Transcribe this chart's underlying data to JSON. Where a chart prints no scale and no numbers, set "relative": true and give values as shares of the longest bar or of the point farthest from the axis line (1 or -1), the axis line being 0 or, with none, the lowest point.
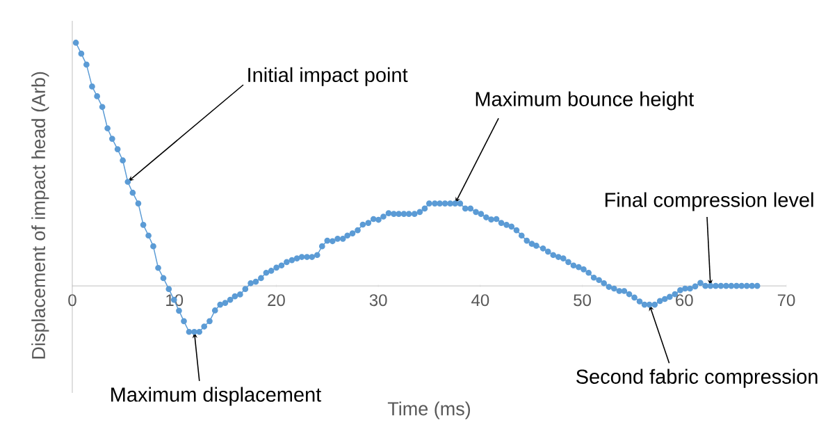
{
  "chart_data": {
    "type": "line",
    "relative": true,
    "xlabel": "Time (ms)",
    "ylabel": "Displacement of impact head (Arb)",
    "xlim": [
      0,
      70
    ],
    "xticks": [
      0,
      10,
      20,
      30,
      40,
      50,
      60,
      70
    ],
    "marker": "circle",
    "line_style": "solid",
    "color": "#5b9bd5",
    "x": [
      0.35,
      0.88,
      1.39,
      1.94,
      2.43,
      2.94,
      3.45,
      3.91,
      4.44,
      4.95,
      5.44,
      5.92,
      6.47,
      6.96,
      7.47,
      7.94,
      8.42,
      8.93,
      9.46,
      9.97,
      10.46,
      10.94,
      11.45,
      11.96,
      12.45,
      12.93,
      13.46,
      13.99,
      14.5,
      14.99,
      15.48,
      15.94,
      16.45,
      16.96,
      17.49,
      17.99,
      18.5,
      19.01,
      19.5,
      20.01,
      20.51,
      21.02,
      21.53,
      22.02,
      22.5,
      23.01,
      23.5,
      24.01,
      24.49,
      25.0,
      25.51,
      26.01,
      26.53,
      26.97,
      27.47,
      27.98,
      28.48,
      29.02,
      29.53,
      30.02,
      30.5,
      31.01,
      31.52,
      32.01,
      32.51,
      33.0,
      33.55,
      34.07,
      34.55,
      34.99,
      35.54,
      36.03,
      36.54,
      37.05,
      37.53,
      38.02,
      38.53,
      39.04,
      39.57,
      40.07,
      40.58,
      41.07,
      41.58,
      42.06,
      42.57,
      43.06,
      43.55,
      44.05,
      44.56,
      45.05,
      45.49,
      46.15,
      46.64,
      47.15,
      47.66,
      48.14,
      48.63,
      49.14,
      49.65,
      50.13,
      50.62,
      51.13,
      51.64,
      52.12,
      52.61,
      53.12,
      53.63,
      54.11,
      54.6,
      55.11,
      55.62,
      56.1,
      56.58,
      57.1,
      57.61,
      58.09,
      58.57,
      59.08,
      59.6,
      60.08,
      60.56,
      61.07,
      61.58,
      62.07,
      62.57,
      63.08,
      63.59,
      64.1,
      64.61,
      65.12,
      65.62,
      66.13,
      66.64,
      67.15
    ],
    "values": [
      1.0,
      0.955,
      0.91,
      0.82,
      0.78,
      0.736,
      0.648,
      0.605,
      0.562,
      0.516,
      0.428,
      0.383,
      0.339,
      0.251,
      0.207,
      0.163,
      0.074,
      0.032,
      -0.013,
      -0.057,
      -0.102,
      -0.145,
      -0.189,
      -0.189,
      -0.189,
      -0.167,
      -0.145,
      -0.101,
      -0.077,
      -0.07,
      -0.057,
      -0.043,
      -0.035,
      -0.013,
      0.011,
      0.017,
      0.032,
      0.054,
      0.062,
      0.075,
      0.084,
      0.098,
      0.106,
      0.113,
      0.119,
      0.119,
      0.119,
      0.127,
      0.163,
      0.186,
      0.184,
      0.194,
      0.194,
      0.207,
      0.216,
      0.229,
      0.252,
      0.259,
      0.275,
      0.272,
      0.285,
      0.299,
      0.296,
      0.296,
      0.296,
      0.296,
      0.296,
      0.304,
      0.318,
      0.339,
      0.339,
      0.339,
      0.339,
      0.339,
      0.339,
      0.339,
      0.318,
      0.318,
      0.304,
      0.296,
      0.282,
      0.273,
      0.275,
      0.259,
      0.251,
      0.244,
      0.229,
      0.207,
      0.186,
      0.173,
      0.165,
      0.154,
      0.141,
      0.127,
      0.119,
      0.113,
      0.098,
      0.084,
      0.077,
      0.068,
      0.054,
      0.034,
      0.024,
      0.011,
      -0.004,
      -0.011,
      -0.021,
      -0.021,
      -0.034,
      -0.048,
      -0.064,
      -0.077,
      -0.077,
      -0.077,
      -0.062,
      -0.054,
      -0.045,
      -0.034,
      -0.018,
      -0.011,
      -0.011,
      -0.002,
      0.012,
      0.0,
      0.0,
      0.0,
      0.0,
      0.0,
      0.0,
      0.0,
      0.0,
      0.0,
      0.0,
      0.0
    ],
    "annotations": [
      {
        "text": "Initial impact point",
        "x": 5.44,
        "y": 0.428
      },
      {
        "text": "Maximum displacement",
        "x": 11.96,
        "y": -0.189
      },
      {
        "text": "Maximum bounce height",
        "x": 37.53,
        "y": 0.339
      },
      {
        "text": "Second fabric compression",
        "x": 56.58,
        "y": -0.077
      },
      {
        "text": "Final compression level",
        "x": 62.57,
        "y": 0.0
      }
    ]
  }
}
